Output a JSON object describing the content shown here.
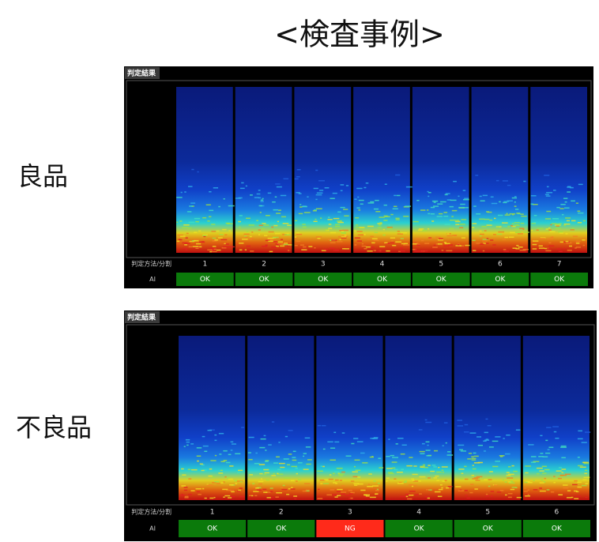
{
  "title": "<検査事例>",
  "panels": [
    {
      "label": "良品",
      "header": "判定結果",
      "method_label": "判定方法/分割",
      "row_label": "AI",
      "columns": [
        1,
        2,
        3,
        4,
        5,
        6,
        7
      ],
      "results": [
        {
          "text": "OK",
          "color": "#0b7a0b"
        },
        {
          "text": "OK",
          "color": "#0b7a0b"
        },
        {
          "text": "OK",
          "color": "#0b7a0b"
        },
        {
          "text": "OK",
          "color": "#0b7a0b"
        },
        {
          "text": "OK",
          "color": "#0b7a0b"
        },
        {
          "text": "OK",
          "color": "#0b7a0b"
        },
        {
          "text": "OK",
          "color": "#0b7a0b"
        }
      ]
    },
    {
      "label": "不良品",
      "header": "判定結果",
      "method_label": "判定方法/分割",
      "row_label": "AI",
      "columns": [
        1,
        2,
        3,
        4,
        5,
        6
      ],
      "results": [
        {
          "text": "OK",
          "color": "#0b7a0b"
        },
        {
          "text": "OK",
          "color": "#0b7a0b"
        },
        {
          "text": "NG",
          "color": "#ff2a1a"
        },
        {
          "text": "OK",
          "color": "#0b7a0b"
        },
        {
          "text": "OK",
          "color": "#0b7a0b"
        },
        {
          "text": "OK",
          "color": "#0b7a0b"
        }
      ]
    }
  ]
}
